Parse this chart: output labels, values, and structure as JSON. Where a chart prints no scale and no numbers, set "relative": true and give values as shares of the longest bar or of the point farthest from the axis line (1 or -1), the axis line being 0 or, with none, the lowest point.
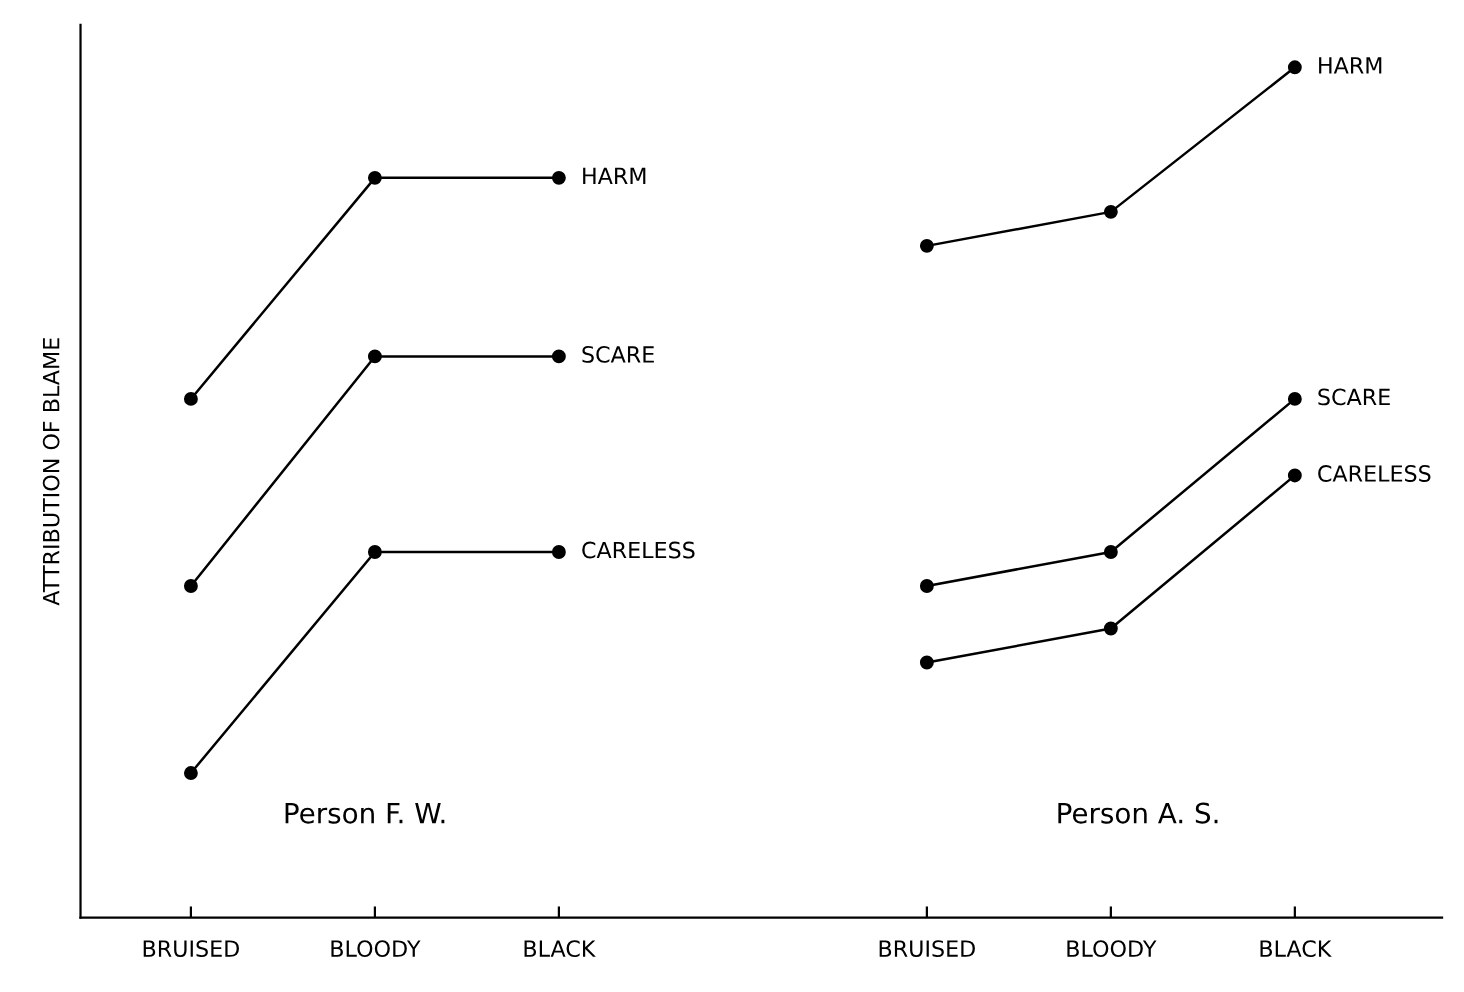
{
  "chart_data": {
    "type": "line",
    "relative": true,
    "ylabel": "ATTRIBUTION OF BLAME",
    "categories": [
      "BRUISED",
      "BLOODY",
      "BLACK",
      null,
      "BRUISED",
      "BLOODY",
      "BLACK"
    ],
    "series": [
      {
        "name": "HARM",
        "color": "#000000",
        "values": [
          0.61,
          0.87,
          0.87,
          null,
          0.79,
          0.83,
          1.0
        ]
      },
      {
        "name": "SCARE",
        "color": "#000000",
        "values": [
          0.39,
          0.66,
          0.66,
          null,
          0.39,
          0.43,
          0.61
        ]
      },
      {
        "name": "CARELESS",
        "color": "#000000",
        "values": [
          0.17,
          0.43,
          0.43,
          null,
          0.3,
          0.34,
          0.52
        ]
      }
    ],
    "annotations": [
      "Person F. W.",
      "Person A. S."
    ],
    "marker": "circle",
    "line_style": "solid",
    "legend": false,
    "grid": false
  }
}
